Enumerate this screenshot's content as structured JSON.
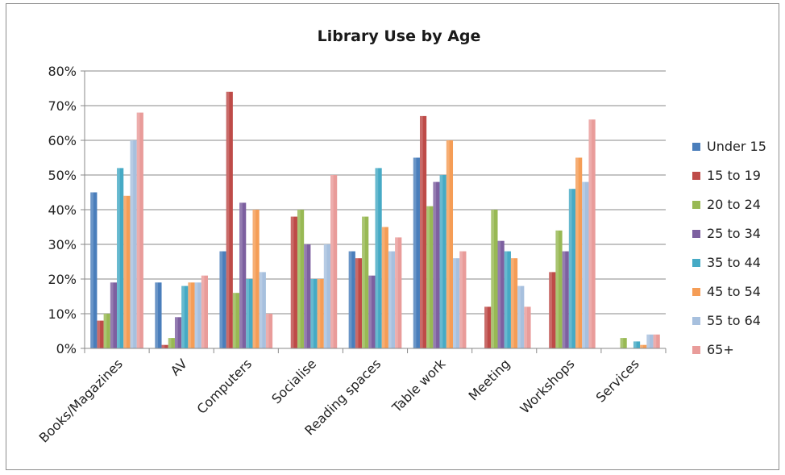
{
  "chart_data": {
    "type": "bar",
    "title": "Library Use by Age",
    "xlabel": "",
    "ylabel": "",
    "ylim": [
      0,
      80
    ],
    "yticks": [
      "0%",
      "10%",
      "20%",
      "30%",
      "40%",
      "50%",
      "60%",
      "70%",
      "80%"
    ],
    "grid": true,
    "legend_position": "right",
    "categories": [
      "Books/Magazines",
      "AV",
      "Computers",
      "Socialise",
      "Reading spaces",
      "Table work",
      "Meeting",
      "Workshops",
      "Services"
    ],
    "series": [
      {
        "name": "Under 15",
        "color": "#4a7ebb",
        "values": [
          45,
          19,
          28,
          0,
          28,
          55,
          0,
          0,
          0
        ]
      },
      {
        "name": "15 to 19",
        "color": "#be4b48",
        "values": [
          8,
          1,
          74,
          38,
          26,
          67,
          12,
          22,
          0
        ]
      },
      {
        "name": "20 to 24",
        "color": "#98b954",
        "values": [
          10,
          3,
          16,
          40,
          38,
          41,
          40,
          34,
          3
        ]
      },
      {
        "name": "25 to 34",
        "color": "#7d60a0",
        "values": [
          19,
          9,
          42,
          30,
          21,
          48,
          31,
          28,
          0
        ]
      },
      {
        "name": "35 to 44",
        "color": "#46aac5",
        "values": [
          52,
          18,
          20,
          20,
          52,
          50,
          28,
          46,
          2
        ]
      },
      {
        "name": "45 to 54",
        "color": "#f59d56",
        "values": [
          44,
          19,
          40,
          20,
          35,
          60,
          26,
          55,
          1
        ]
      },
      {
        "name": "55 to 64",
        "color": "#a7c0de",
        "values": [
          60,
          19,
          22,
          30,
          28,
          26,
          18,
          48,
          4
        ]
      },
      {
        "name": "65+",
        "color": "#e99c9a",
        "values": [
          68,
          21,
          10,
          50,
          32,
          28,
          12,
          66,
          4
        ]
      }
    ]
  }
}
